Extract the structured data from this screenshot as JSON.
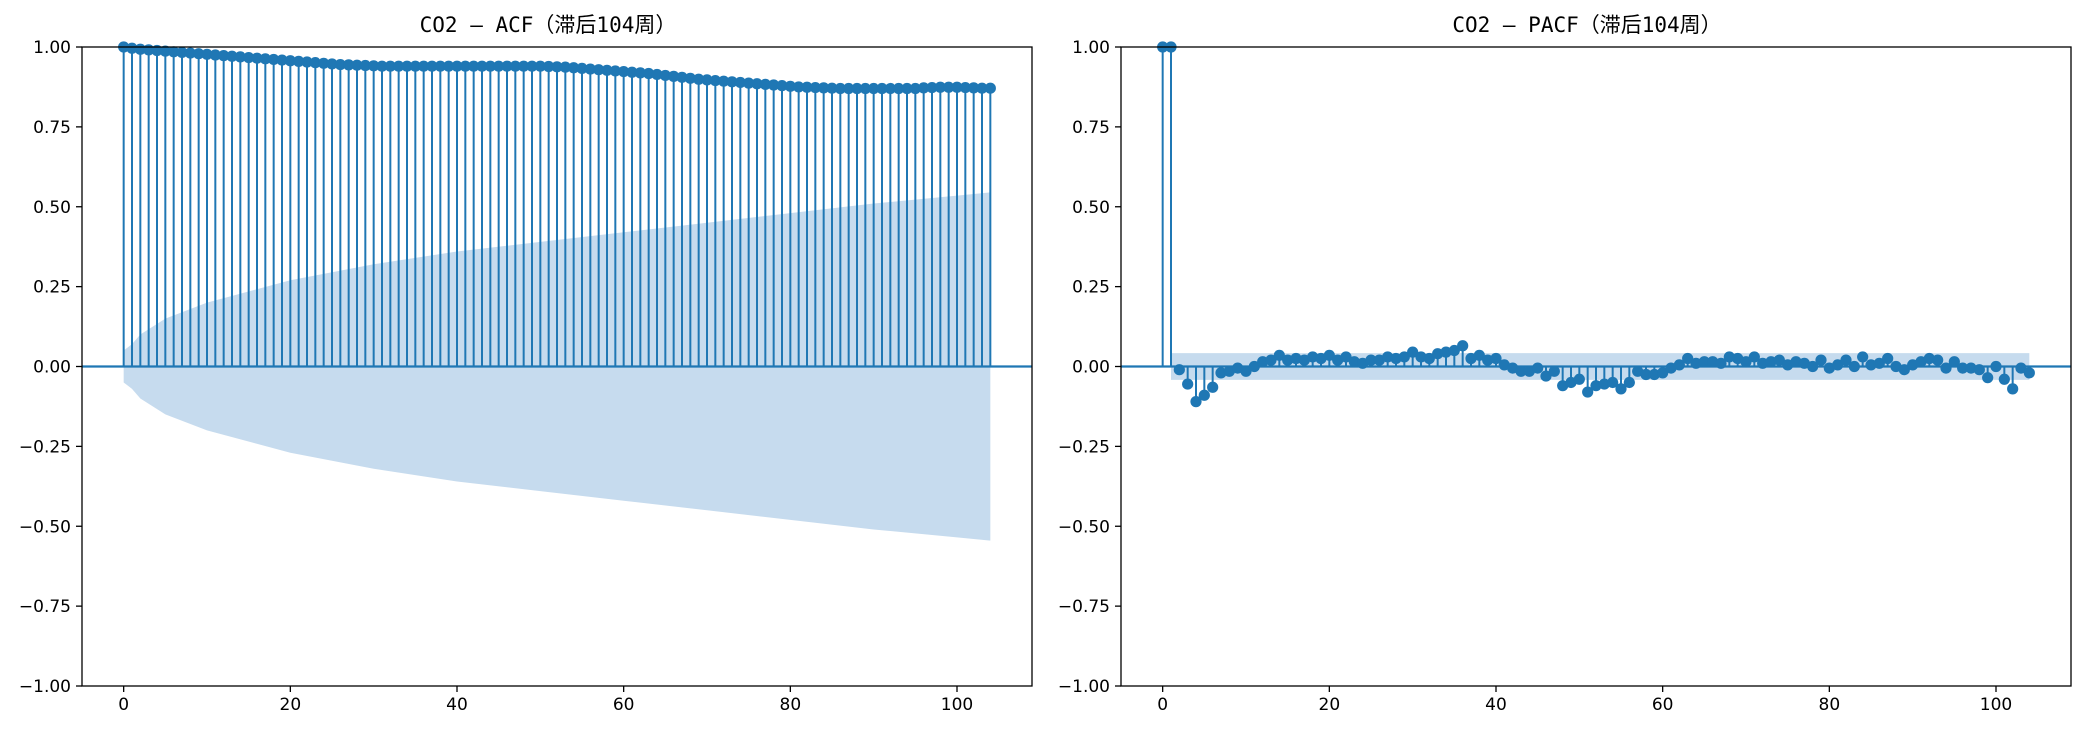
{
  "colors": {
    "series": "#1f77b4",
    "confidence_band": "#c6dbee"
  },
  "chart_data": [
    {
      "type": "stem",
      "title": "CO2 — ACF（滞后104周）",
      "xlabel": "",
      "ylabel": "",
      "xlim": [
        -5,
        109
      ],
      "ylim": [
        -1.0,
        1.0
      ],
      "xticks": [
        0,
        20,
        40,
        60,
        80,
        100
      ],
      "yticks": [
        -1.0,
        -0.75,
        -0.5,
        -0.25,
        0.0,
        0.25,
        0.5,
        0.75,
        1.0
      ],
      "xtick_labels": [
        "0",
        "20",
        "40",
        "60",
        "80",
        "100"
      ],
      "ytick_labels": [
        "−1.00",
        "−0.75",
        "−0.50",
        "−0.25",
        "0.00",
        "0.25",
        "0.50",
        "0.75",
        "1.00"
      ],
      "grid": false,
      "x": [
        0,
        1,
        2,
        3,
        4,
        5,
        6,
        7,
        8,
        9,
        10,
        11,
        12,
        13,
        14,
        15,
        16,
        17,
        18,
        19,
        20,
        21,
        22,
        23,
        24,
        25,
        26,
        27,
        28,
        29,
        30,
        31,
        32,
        33,
        34,
        35,
        36,
        37,
        38,
        39,
        40,
        41,
        42,
        43,
        44,
        45,
        46,
        47,
        48,
        49,
        50,
        51,
        52,
        53,
        54,
        55,
        56,
        57,
        58,
        59,
        60,
        61,
        62,
        63,
        64,
        65,
        66,
        67,
        68,
        69,
        70,
        71,
        72,
        73,
        74,
        75,
        76,
        77,
        78,
        79,
        80,
        81,
        82,
        83,
        84,
        85,
        86,
        87,
        88,
        89,
        90,
        91,
        92,
        93,
        94,
        95,
        96,
        97,
        98,
        99,
        100,
        101,
        102,
        103,
        104
      ],
      "values": [
        1.0,
        0.996,
        0.993,
        0.991,
        0.989,
        0.987,
        0.985,
        0.983,
        0.981,
        0.979,
        0.977,
        0.975,
        0.973,
        0.971,
        0.969,
        0.967,
        0.965,
        0.963,
        0.961,
        0.959,
        0.957,
        0.955,
        0.953,
        0.951,
        0.949,
        0.947,
        0.945,
        0.944,
        0.943,
        0.942,
        0.941,
        0.94,
        0.94,
        0.94,
        0.94,
        0.94,
        0.94,
        0.94,
        0.94,
        0.94,
        0.94,
        0.94,
        0.94,
        0.94,
        0.94,
        0.94,
        0.94,
        0.94,
        0.94,
        0.94,
        0.94,
        0.939,
        0.938,
        0.937,
        0.935,
        0.933,
        0.931,
        0.929,
        0.927,
        0.925,
        0.923,
        0.921,
        0.919,
        0.917,
        0.914,
        0.911,
        0.908,
        0.905,
        0.902,
        0.899,
        0.897,
        0.895,
        0.893,
        0.891,
        0.889,
        0.887,
        0.885,
        0.883,
        0.881,
        0.879,
        0.877,
        0.875,
        0.874,
        0.873,
        0.872,
        0.871,
        0.87,
        0.87,
        0.87,
        0.87,
        0.87,
        0.87,
        0.87,
        0.87,
        0.87,
        0.87,
        0.872,
        0.873,
        0.874,
        0.874,
        0.874,
        0.873,
        0.872,
        0.871,
        0.871
      ],
      "confidence_band": {
        "x": [
          0,
          1,
          2,
          5,
          10,
          20,
          30,
          40,
          50,
          60,
          70,
          80,
          90,
          100,
          104
        ],
        "upper": [
          0.05,
          0.07,
          0.1,
          0.15,
          0.2,
          0.27,
          0.32,
          0.36,
          0.39,
          0.42,
          0.45,
          0.48,
          0.51,
          0.535,
          0.545
        ],
        "lower": [
          -0.05,
          -0.07,
          -0.1,
          -0.15,
          -0.2,
          -0.27,
          -0.32,
          -0.36,
          -0.39,
          -0.42,
          -0.45,
          -0.48,
          -0.51,
          -0.535,
          -0.545
        ]
      }
    },
    {
      "type": "stem",
      "title": "CO2 — PACF（滞后104周）",
      "xlabel": "",
      "ylabel": "",
      "xlim": [
        -5,
        109
      ],
      "ylim": [
        -1.0,
        1.0
      ],
      "xticks": [
        0,
        20,
        40,
        60,
        80,
        100
      ],
      "yticks": [
        -1.0,
        -0.75,
        -0.5,
        -0.25,
        0.0,
        0.25,
        0.5,
        0.75,
        1.0
      ],
      "xtick_labels": [
        "0",
        "20",
        "40",
        "60",
        "80",
        "100"
      ],
      "ytick_labels": [
        "−1.00",
        "−0.75",
        "−0.50",
        "−0.25",
        "0.00",
        "0.25",
        "0.50",
        "0.75",
        "1.00"
      ],
      "grid": false,
      "x": [
        0,
        1,
        2,
        3,
        4,
        5,
        6,
        7,
        8,
        9,
        10,
        11,
        12,
        13,
        14,
        15,
        16,
        17,
        18,
        19,
        20,
        21,
        22,
        23,
        24,
        25,
        26,
        27,
        28,
        29,
        30,
        31,
        32,
        33,
        34,
        35,
        36,
        37,
        38,
        39,
        40,
        41,
        42,
        43,
        44,
        45,
        46,
        47,
        48,
        49,
        50,
        51,
        52,
        53,
        54,
        55,
        56,
        57,
        58,
        59,
        60,
        61,
        62,
        63,
        64,
        65,
        66,
        67,
        68,
        69,
        70,
        71,
        72,
        73,
        74,
        75,
        76,
        77,
        78,
        79,
        80,
        81,
        82,
        83,
        84,
        85,
        86,
        87,
        88,
        89,
        90,
        91,
        92,
        93,
        94,
        95,
        96,
        97,
        98,
        99,
        100,
        101,
        102,
        103,
        104
      ],
      "values": [
        1.0,
        1.0,
        -0.01,
        -0.055,
        -0.11,
        -0.09,
        -0.065,
        -0.02,
        -0.015,
        -0.005,
        -0.015,
        0.0,
        0.015,
        0.02,
        0.035,
        0.02,
        0.025,
        0.02,
        0.03,
        0.025,
        0.035,
        0.02,
        0.03,
        0.015,
        0.01,
        0.02,
        0.02,
        0.03,
        0.025,
        0.03,
        0.045,
        0.03,
        0.025,
        0.04,
        0.045,
        0.05,
        0.065,
        0.025,
        0.035,
        0.02,
        0.025,
        0.005,
        -0.005,
        -0.015,
        -0.015,
        -0.005,
        -0.03,
        -0.015,
        -0.06,
        -0.05,
        -0.04,
        -0.08,
        -0.06,
        -0.055,
        -0.05,
        -0.07,
        -0.05,
        -0.015,
        -0.025,
        -0.025,
        -0.02,
        -0.005,
        0.005,
        0.025,
        0.01,
        0.015,
        0.015,
        0.01,
        0.03,
        0.025,
        0.015,
        0.03,
        0.01,
        0.015,
        0.02,
        0.005,
        0.015,
        0.01,
        0.0,
        0.02,
        -0.005,
        0.005,
        0.02,
        0.0,
        0.03,
        0.005,
        0.01,
        0.025,
        0.0,
        -0.01,
        0.005,
        0.015,
        0.025,
        0.02,
        -0.005,
        0.015,
        -0.005,
        -0.005,
        -0.01,
        -0.035,
        0.0,
        -0.04,
        -0.07,
        -0.005,
        -0.02
      ],
      "confidence_band": {
        "x": [
          1,
          104
        ],
        "upper": [
          0.042,
          0.042
        ],
        "lower": [
          -0.042,
          -0.042
        ]
      }
    }
  ]
}
